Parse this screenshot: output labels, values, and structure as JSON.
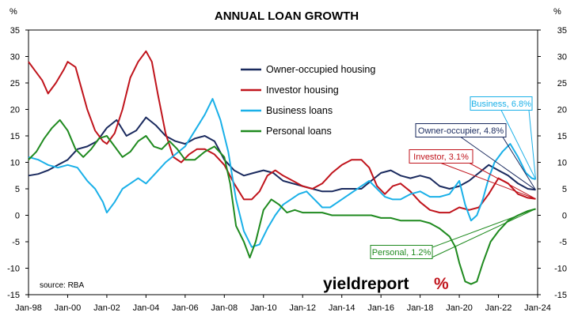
{
  "chart_data": {
    "type": "line",
    "title": "ANNUAL LOAN GROWTH",
    "unit_left": "%",
    "unit_right": "%",
    "ylim": [
      -15,
      35
    ],
    "yticks": [
      35,
      30,
      25,
      20,
      15,
      10,
      5,
      0,
      -5,
      -10,
      -15
    ],
    "xlim": [
      1998.0,
      2024.0
    ],
    "xticks": [
      "Jan-98",
      "Jan-00",
      "Jan-02",
      "Jan-04",
      "Jan-06",
      "Jan-08",
      "Jan-10",
      "Jan-12",
      "Jan-14",
      "Jan-16",
      "Jan-18",
      "Jan-20",
      "Jan-22",
      "Jan-24"
    ],
    "grid": false,
    "legend_position": "top-center",
    "source": "source: RBA",
    "brand": "yieldreport",
    "brand_suffix": "%",
    "series": [
      {
        "name": "Owner-occupied housing",
        "color": "#1a2a5e",
        "points": [
          [
            1998.0,
            7.5
          ],
          [
            1998.5,
            7.8
          ],
          [
            1999.0,
            8.5
          ],
          [
            1999.5,
            9.5
          ],
          [
            2000.0,
            10.5
          ],
          [
            2000.5,
            12.5
          ],
          [
            2001.0,
            13.0
          ],
          [
            2001.5,
            14.0
          ],
          [
            2002.0,
            16.5
          ],
          [
            2002.5,
            18.0
          ],
          [
            2003.0,
            15.0
          ],
          [
            2003.5,
            16.0
          ],
          [
            2004.0,
            18.5
          ],
          [
            2004.5,
            17.0
          ],
          [
            2005.0,
            15.0
          ],
          [
            2005.5,
            14.0
          ],
          [
            2006.0,
            13.5
          ],
          [
            2006.5,
            14.5
          ],
          [
            2007.0,
            15.0
          ],
          [
            2007.5,
            14.0
          ],
          [
            2008.0,
            10.5
          ],
          [
            2008.5,
            8.5
          ],
          [
            2009.0,
            7.5
          ],
          [
            2009.5,
            8.0
          ],
          [
            2010.0,
            8.5
          ],
          [
            2010.5,
            8.0
          ],
          [
            2011.0,
            6.5
          ],
          [
            2011.5,
            6.0
          ],
          [
            2012.0,
            5.5
          ],
          [
            2012.5,
            5.0
          ],
          [
            2013.0,
            4.5
          ],
          [
            2013.5,
            4.5
          ],
          [
            2014.0,
            5.0
          ],
          [
            2014.5,
            5.0
          ],
          [
            2015.0,
            5.0
          ],
          [
            2015.5,
            6.5
          ],
          [
            2016.0,
            8.0
          ],
          [
            2016.5,
            8.5
          ],
          [
            2017.0,
            7.5
          ],
          [
            2017.5,
            7.0
          ],
          [
            2018.0,
            7.5
          ],
          [
            2018.5,
            7.0
          ],
          [
            2019.0,
            5.5
          ],
          [
            2019.5,
            5.0
          ],
          [
            2020.0,
            5.5
          ],
          [
            2020.5,
            6.5
          ],
          [
            2021.0,
            8.0
          ],
          [
            2021.5,
            9.5
          ],
          [
            2022.0,
            8.5
          ],
          [
            2022.5,
            7.5
          ],
          [
            2023.0,
            6.0
          ],
          [
            2023.5,
            5.0
          ],
          [
            2023.9,
            4.8
          ]
        ]
      },
      {
        "name": "Investor housing",
        "color": "#c0141c",
        "points": [
          [
            1998.0,
            29.0
          ],
          [
            1998.3,
            27.5
          ],
          [
            1998.7,
            25.5
          ],
          [
            1999.0,
            23.0
          ],
          [
            1999.4,
            25.0
          ],
          [
            1999.8,
            27.5
          ],
          [
            2000.0,
            29.0
          ],
          [
            2000.4,
            28.0
          ],
          [
            2000.7,
            24.0
          ],
          [
            2001.0,
            20.0
          ],
          [
            2001.4,
            16.0
          ],
          [
            2001.8,
            14.0
          ],
          [
            2002.0,
            13.5
          ],
          [
            2002.4,
            15.5
          ],
          [
            2002.8,
            20.0
          ],
          [
            2003.2,
            26.0
          ],
          [
            2003.6,
            29.0
          ],
          [
            2004.0,
            31.0
          ],
          [
            2004.3,
            29.0
          ],
          [
            2004.6,
            23.0
          ],
          [
            2005.0,
            15.5
          ],
          [
            2005.4,
            11.0
          ],
          [
            2005.8,
            10.0
          ],
          [
            2006.2,
            11.5
          ],
          [
            2006.6,
            12.5
          ],
          [
            2007.0,
            12.5
          ],
          [
            2007.5,
            11.5
          ],
          [
            2008.0,
            9.5
          ],
          [
            2008.5,
            6.0
          ],
          [
            2009.0,
            3.0
          ],
          [
            2009.4,
            3.0
          ],
          [
            2009.8,
            4.5
          ],
          [
            2010.2,
            7.5
          ],
          [
            2010.6,
            8.5
          ],
          [
            2011.0,
            7.5
          ],
          [
            2011.5,
            6.5
          ],
          [
            2012.0,
            5.5
          ],
          [
            2012.5,
            5.0
          ],
          [
            2013.0,
            6.0
          ],
          [
            2013.5,
            8.0
          ],
          [
            2014.0,
            9.5
          ],
          [
            2014.5,
            10.5
          ],
          [
            2015.0,
            10.5
          ],
          [
            2015.4,
            9.0
          ],
          [
            2015.8,
            5.5
          ],
          [
            2016.2,
            4.0
          ],
          [
            2016.6,
            5.5
          ],
          [
            2017.0,
            6.0
          ],
          [
            2017.5,
            4.5
          ],
          [
            2018.0,
            2.5
          ],
          [
            2018.5,
            1.0
          ],
          [
            2019.0,
            0.5
          ],
          [
            2019.5,
            0.5
          ],
          [
            2020.0,
            1.5
          ],
          [
            2020.5,
            1.0
          ],
          [
            2021.0,
            1.5
          ],
          [
            2021.5,
            4.0
          ],
          [
            2022.0,
            7.0
          ],
          [
            2022.5,
            6.0
          ],
          [
            2023.0,
            4.0
          ],
          [
            2023.5,
            3.3
          ],
          [
            2023.9,
            3.1
          ]
        ]
      },
      {
        "name": "Business loans",
        "color": "#1ab0e8",
        "points": [
          [
            1998.0,
            11.0
          ],
          [
            1998.5,
            10.5
          ],
          [
            1999.0,
            9.5
          ],
          [
            1999.5,
            9.0
          ],
          [
            2000.0,
            9.5
          ],
          [
            2000.5,
            9.0
          ],
          [
            2001.0,
            6.5
          ],
          [
            2001.4,
            5.0
          ],
          [
            2001.8,
            2.5
          ],
          [
            2002.0,
            0.5
          ],
          [
            2002.4,
            2.5
          ],
          [
            2002.8,
            5.0
          ],
          [
            2003.2,
            6.0
          ],
          [
            2003.6,
            7.0
          ],
          [
            2004.0,
            6.0
          ],
          [
            2004.5,
            8.0
          ],
          [
            2005.0,
            10.0
          ],
          [
            2005.5,
            11.5
          ],
          [
            2006.0,
            13.0
          ],
          [
            2006.5,
            16.0
          ],
          [
            2007.0,
            19.0
          ],
          [
            2007.4,
            22.0
          ],
          [
            2007.8,
            18.0
          ],
          [
            2008.2,
            12.0
          ],
          [
            2008.6,
            3.0
          ],
          [
            2009.0,
            -3.0
          ],
          [
            2009.4,
            -6.0
          ],
          [
            2009.8,
            -5.5
          ],
          [
            2010.2,
            -2.5
          ],
          [
            2010.6,
            0.0
          ],
          [
            2011.0,
            2.0
          ],
          [
            2011.4,
            3.0
          ],
          [
            2011.8,
            4.0
          ],
          [
            2012.2,
            4.5
          ],
          [
            2012.6,
            3.0
          ],
          [
            2013.0,
            1.5
          ],
          [
            2013.4,
            1.5
          ],
          [
            2013.8,
            2.5
          ],
          [
            2014.2,
            3.5
          ],
          [
            2014.6,
            4.5
          ],
          [
            2015.0,
            5.5
          ],
          [
            2015.4,
            6.5
          ],
          [
            2015.8,
            5.0
          ],
          [
            2016.2,
            3.5
          ],
          [
            2016.6,
            3.0
          ],
          [
            2017.0,
            3.0
          ],
          [
            2017.5,
            4.0
          ],
          [
            2018.0,
            4.5
          ],
          [
            2018.5,
            3.5
          ],
          [
            2019.0,
            3.5
          ],
          [
            2019.5,
            4.0
          ],
          [
            2020.0,
            6.5
          ],
          [
            2020.3,
            2.0
          ],
          [
            2020.6,
            -1.0
          ],
          [
            2020.9,
            0.0
          ],
          [
            2021.2,
            3.0
          ],
          [
            2021.5,
            7.0
          ],
          [
            2021.8,
            10.0
          ],
          [
            2022.2,
            12.0
          ],
          [
            2022.6,
            13.5
          ],
          [
            2023.0,
            11.0
          ],
          [
            2023.4,
            8.0
          ],
          [
            2023.7,
            7.0
          ],
          [
            2023.9,
            6.8
          ]
        ]
      },
      {
        "name": "Personal loans",
        "color": "#1f8a1f",
        "points": [
          [
            1998.0,
            10.5
          ],
          [
            1998.4,
            12.0
          ],
          [
            1998.8,
            14.5
          ],
          [
            1999.2,
            16.5
          ],
          [
            1999.6,
            18.0
          ],
          [
            2000.0,
            16.0
          ],
          [
            2000.4,
            12.5
          ],
          [
            2000.8,
            11.0
          ],
          [
            2001.2,
            12.5
          ],
          [
            2001.6,
            14.5
          ],
          [
            2002.0,
            15.0
          ],
          [
            2002.4,
            13.0
          ],
          [
            2002.8,
            11.0
          ],
          [
            2003.2,
            12.0
          ],
          [
            2003.6,
            14.0
          ],
          [
            2004.0,
            15.0
          ],
          [
            2004.4,
            13.0
          ],
          [
            2004.8,
            12.5
          ],
          [
            2005.2,
            14.0
          ],
          [
            2005.6,
            12.5
          ],
          [
            2006.0,
            10.5
          ],
          [
            2006.5,
            10.5
          ],
          [
            2007.0,
            12.0
          ],
          [
            2007.5,
            13.0
          ],
          [
            2008.0,
            11.0
          ],
          [
            2008.3,
            6.0
          ],
          [
            2008.6,
            -2.0
          ],
          [
            2009.0,
            -5.0
          ],
          [
            2009.3,
            -8.0
          ],
          [
            2009.6,
            -5.0
          ],
          [
            2010.0,
            1.0
          ],
          [
            2010.4,
            3.0
          ],
          [
            2010.8,
            2.0
          ],
          [
            2011.2,
            0.5
          ],
          [
            2011.6,
            1.0
          ],
          [
            2012.0,
            0.5
          ],
          [
            2012.5,
            0.5
          ],
          [
            2013.0,
            0.5
          ],
          [
            2013.5,
            0.0
          ],
          [
            2014.0,
            0.0
          ],
          [
            2014.5,
            0.0
          ],
          [
            2015.0,
            0.0
          ],
          [
            2015.5,
            0.0
          ],
          [
            2016.0,
            -0.5
          ],
          [
            2016.5,
            -0.5
          ],
          [
            2017.0,
            -1.0
          ],
          [
            2017.5,
            -1.0
          ],
          [
            2018.0,
            -1.0
          ],
          [
            2018.5,
            -1.5
          ],
          [
            2019.0,
            -2.5
          ],
          [
            2019.5,
            -4.0
          ],
          [
            2019.8,
            -6.0
          ],
          [
            2020.0,
            -9.0
          ],
          [
            2020.3,
            -12.5
          ],
          [
            2020.6,
            -13.0
          ],
          [
            2020.9,
            -12.5
          ],
          [
            2021.2,
            -9.0
          ],
          [
            2021.6,
            -5.0
          ],
          [
            2022.0,
            -3.0
          ],
          [
            2022.5,
            -1.0
          ],
          [
            2023.0,
            0.0
          ],
          [
            2023.5,
            0.8
          ],
          [
            2023.9,
            1.2
          ]
        ]
      }
    ],
    "annotations": [
      {
        "label": "Business, 6.8%",
        "series": 2
      },
      {
        "label": "Owner-occupier, 4.8%",
        "series": 0
      },
      {
        "label": "Investor, 3.1%",
        "series": 1
      },
      {
        "label": "Personal, 1.2%",
        "series": 3
      }
    ]
  }
}
